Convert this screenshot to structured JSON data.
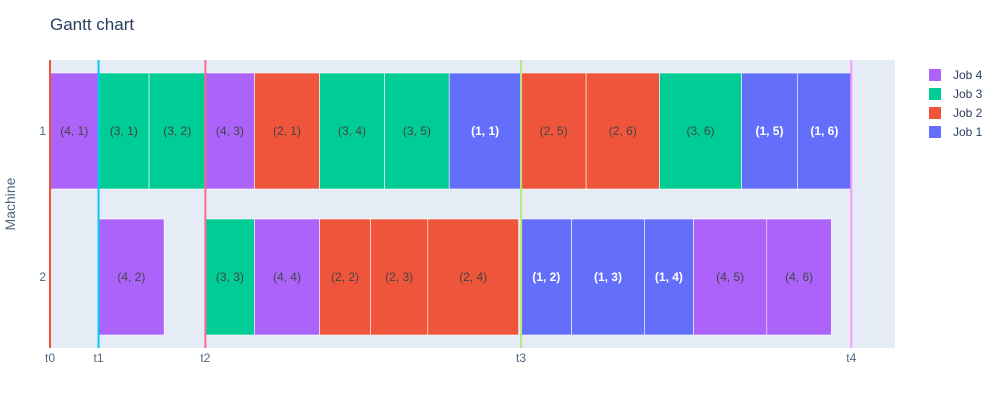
{
  "chart_data": {
    "type": "gantt",
    "title": "Gantt chart",
    "ylabel": "Machine",
    "xlabel": "",
    "machines": [
      "1",
      "2"
    ],
    "x_ticks": [
      {
        "label": "t0",
        "value": 0
      },
      {
        "label": "t1",
        "value": 1
      },
      {
        "label": "t2",
        "value": 3.2
      },
      {
        "label": "t3",
        "value": 9.7
      },
      {
        "label": "t4",
        "value": 16.5
      }
    ],
    "xlim": [
      0,
      17.4
    ],
    "marker_lines": [
      {
        "label": "t0",
        "value": 0,
        "color": "#ef553b"
      },
      {
        "label": "t1",
        "value": 1,
        "color": "#00cdf5"
      },
      {
        "label": "t2",
        "value": 3.2,
        "color": "#ff6692"
      },
      {
        "label": "t3",
        "value": 9.7,
        "color": "#b6e880"
      },
      {
        "label": "t4",
        "value": 16.5,
        "color": "#ff97ff"
      }
    ],
    "legend": [
      {
        "name": "Job 4",
        "color": "#ab63fa"
      },
      {
        "name": "Job 3",
        "color": "#00cc96"
      },
      {
        "name": "Job 2",
        "color": "#ef553b"
      },
      {
        "name": "Job 1",
        "color": "#636efa"
      }
    ],
    "legend_position": "top-right",
    "grid": false,
    "tasks": [
      {
        "machine": "1",
        "label": "(4, 1)",
        "job": "Job 4",
        "start": 0,
        "end": 1
      },
      {
        "machine": "1",
        "label": "(3, 1)",
        "job": "Job 3",
        "start": 1,
        "end": 2.04
      },
      {
        "machine": "1",
        "label": "(3, 2)",
        "job": "Job 3",
        "start": 2.04,
        "end": 3.2
      },
      {
        "machine": "1",
        "label": "(4, 3)",
        "job": "Job 4",
        "start": 3.2,
        "end": 4.21
      },
      {
        "machine": "1",
        "label": "(2, 1)",
        "job": "Job 2",
        "start": 4.21,
        "end": 5.55
      },
      {
        "machine": "1",
        "label": "(3, 4)",
        "job": "Job 3",
        "start": 5.55,
        "end": 6.89
      },
      {
        "machine": "1",
        "label": "(3, 5)",
        "job": "Job 3",
        "start": 6.89,
        "end": 8.22
      },
      {
        "machine": "1",
        "label": "(1, 1)",
        "job": "Job 1",
        "start": 8.22,
        "end": 9.7
      },
      {
        "machine": "1",
        "label": "(2, 5)",
        "job": "Job 2",
        "start": 9.7,
        "end": 11.04
      },
      {
        "machine": "1",
        "label": "(2, 6)",
        "job": "Job 2",
        "start": 11.04,
        "end": 12.55
      },
      {
        "machine": "1",
        "label": "(3, 6)",
        "job": "Job 3",
        "start": 12.55,
        "end": 14.24
      },
      {
        "machine": "1",
        "label": "(1, 5)",
        "job": "Job 1",
        "start": 14.24,
        "end": 15.39
      },
      {
        "machine": "1",
        "label": "(1, 6)",
        "job": "Job 1",
        "start": 15.39,
        "end": 16.5
      },
      {
        "machine": "2",
        "label": "(4, 2)",
        "job": "Job 4",
        "start": 1,
        "end": 2.35
      },
      {
        "machine": "2",
        "label": "(3, 3)",
        "job": "Job 3",
        "start": 3.2,
        "end": 4.21
      },
      {
        "machine": "2",
        "label": "(4, 4)",
        "job": "Job 4",
        "start": 4.21,
        "end": 5.55
      },
      {
        "machine": "2",
        "label": "(2, 2)",
        "job": "Job 2",
        "start": 5.55,
        "end": 6.6
      },
      {
        "machine": "2",
        "label": "(2, 3)",
        "job": "Job 2",
        "start": 6.6,
        "end": 7.78
      },
      {
        "machine": "2",
        "label": "(2, 4)",
        "job": "Job 2",
        "start": 7.78,
        "end": 9.65
      },
      {
        "machine": "2",
        "label": "(1, 2)",
        "job": "Job 1",
        "start": 9.7,
        "end": 10.74
      },
      {
        "machine": "2",
        "label": "(1, 3)",
        "job": "Job 1",
        "start": 10.74,
        "end": 12.24
      },
      {
        "machine": "2",
        "label": "(1, 4)",
        "job": "Job 1",
        "start": 12.24,
        "end": 13.25
      },
      {
        "machine": "2",
        "label": "(4, 5)",
        "job": "Job 4",
        "start": 13.25,
        "end": 14.76
      },
      {
        "machine": "2",
        "label": "(4, 6)",
        "job": "Job 4",
        "start": 14.76,
        "end": 16.09
      }
    ]
  }
}
